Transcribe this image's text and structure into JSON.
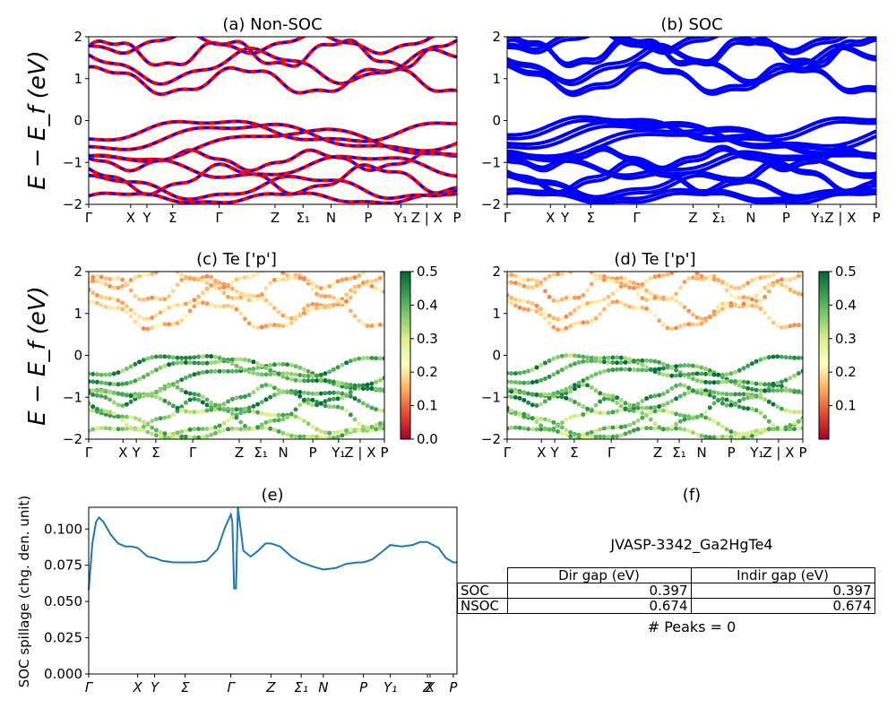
{
  "panels": {
    "a_title": "(a) Non-SOC",
    "b_title": "(b) SOC",
    "c_title": "(c)  Te ['p']",
    "d_title": "(d) Te ['p']",
    "e_title": "(e)",
    "f_title": "(f)"
  },
  "ylabels": {
    "band_y": "E − E_f (eV)",
    "spillage_y": "SOC spillage (chg. den. unit)"
  },
  "colorbar_ticks": [
    "0.0",
    "0.1",
    "0.2",
    "0.3",
    "0.4",
    "0.5"
  ],
  "colorbar_ticks_d": [
    "0.1",
    "0.2",
    "0.3",
    "0.4",
    "0.5"
  ],
  "chart_data": [
    {
      "id": "a",
      "type": "line",
      "title": "(a) Non-SOC",
      "ylabel": "E − E_f (eV)",
      "ylim": [
        -2,
        2
      ],
      "yticks": [
        "2",
        "1",
        "0",
        "−1",
        "−2"
      ],
      "kpath_labels": [
        "Γ",
        "X",
        "Y",
        "Σ",
        "Γ",
        "Z",
        "Σ₁",
        "N",
        "P",
        "Y₁",
        "Z | X",
        "P"
      ],
      "kpath_positions": [
        0,
        0.114,
        0.158,
        0.228,
        0.354,
        0.506,
        0.582,
        0.658,
        0.759,
        0.848,
        0.918,
        1.0
      ],
      "series_colors": [
        "#ff0000",
        "#0000ff"
      ],
      "bands_note_values": [
        -1.9,
        -1.5,
        -1.0,
        -0.3,
        0.0,
        0.7,
        1.45,
        1.9
      ]
    },
    {
      "id": "b",
      "type": "line",
      "title": "(b) SOC",
      "ylabel": "",
      "ylim": [
        -2,
        2
      ],
      "yticks": [
        "2",
        "1",
        "0",
        "−1",
        "−2"
      ],
      "kpath_labels": [
        "Γ",
        "X",
        "Y",
        "Σ",
        "Γ",
        "Z",
        "Σ₁",
        "N",
        "P",
        "Y₁",
        "Z | X",
        "P"
      ],
      "kpath_positions": [
        0,
        0.146,
        0.195,
        0.282,
        0.437,
        0.627,
        0.713,
        0.822,
        0.941,
        1.048,
        1.124,
        1.245
      ],
      "series_colors": [
        "#0000ff"
      ]
    },
    {
      "id": "c",
      "type": "scatter",
      "title": "(c)  Te ['p']",
      "ylabel": "E − E_f (eV)",
      "ylim": [
        -2,
        2
      ],
      "yticks": [
        "2",
        "1",
        "0",
        "−1",
        "−2"
      ],
      "colorbar_range": [
        0.0,
        0.5
      ],
      "kpath_labels": [
        "Γ",
        "X",
        "Y",
        "Σ",
        "Γ",
        "Z",
        "Σ₁",
        "N",
        "P",
        "Y₁",
        "Z | X",
        "P"
      ],
      "kpath_positions": [
        0,
        0.116,
        0.161,
        0.227,
        0.352,
        0.509,
        0.582,
        0.658,
        0.758,
        0.845,
        0.918,
        1.0
      ]
    },
    {
      "id": "d",
      "type": "scatter",
      "title": "(d) Te ['p']",
      "ylabel": "",
      "ylim": [
        -2,
        2
      ],
      "yticks": [
        "2",
        "1",
        "0",
        "−1",
        "−2"
      ],
      "colorbar_range": [
        0.0,
        0.5
      ],
      "kpath_labels": [
        "Γ",
        "X",
        "Y",
        "Σ",
        "Γ",
        "Z",
        "Σ₁",
        "N",
        "P",
        "Y₁",
        "Z | X",
        "P"
      ],
      "kpath_positions": [
        0,
        0.116,
        0.161,
        0.227,
        0.352,
        0.509,
        0.582,
        0.658,
        0.758,
        0.845,
        0.918,
        1.0
      ]
    },
    {
      "id": "e",
      "type": "line",
      "title": "(e)",
      "ylabel": "SOC spillage (chg. den. unit)",
      "ylim": [
        0,
        0.115
      ],
      "yticks": [
        "0.000",
        "0.025",
        "0.050",
        "0.075",
        "0.100"
      ],
      "ytick_values": [
        0,
        0.025,
        0.05,
        0.075,
        0.1
      ],
      "kpath_labels": [
        "Γ",
        "X",
        "Y",
        "Σ",
        "Γ",
        "Z",
        "Σ₁",
        "N",
        "P",
        "Y₁",
        "Z",
        "X",
        "P"
      ],
      "kpath_positions": [
        0,
        0.133,
        0.179,
        0.262,
        0.386,
        0.495,
        0.577,
        0.637,
        0.746,
        0.819,
        0.92,
        0.927,
        0.99
      ],
      "color": "#1f77b4",
      "x": [
        0,
        0.01,
        0.02,
        0.028,
        0.04,
        0.06,
        0.08,
        0.1,
        0.115,
        0.133,
        0.16,
        0.179,
        0.2,
        0.23,
        0.262,
        0.29,
        0.32,
        0.35,
        0.37,
        0.386,
        0.39,
        0.395,
        0.4,
        0.402,
        0.405,
        0.42,
        0.44,
        0.46,
        0.48,
        0.495,
        0.52,
        0.55,
        0.577,
        0.61,
        0.637,
        0.67,
        0.7,
        0.73,
        0.746,
        0.77,
        0.8,
        0.819,
        0.85,
        0.88,
        0.9,
        0.92,
        0.927,
        0.95,
        0.97,
        0.99,
        1.0
      ],
      "values": [
        0.058,
        0.09,
        0.105,
        0.108,
        0.105,
        0.096,
        0.09,
        0.088,
        0.088,
        0.087,
        0.081,
        0.08,
        0.078,
        0.077,
        0.077,
        0.077,
        0.078,
        0.086,
        0.101,
        0.11,
        0.105,
        0.059,
        0.059,
        0.082,
        0.115,
        0.085,
        0.081,
        0.085,
        0.09,
        0.09,
        0.088,
        0.081,
        0.077,
        0.074,
        0.072,
        0.073,
        0.076,
        0.077,
        0.077,
        0.079,
        0.085,
        0.089,
        0.088,
        0.089,
        0.091,
        0.091,
        0.09,
        0.087,
        0.08,
        0.077,
        0.077
      ]
    }
  ],
  "info": {
    "jid": "JVASP-3342_Ga2HgTe4",
    "header_dir": "Dir gap (eV)",
    "header_indir": "Indir gap (eV)",
    "row1_label": "SOC",
    "row1_dir": "0.397",
    "row1_indir": "0.397",
    "row2_label": "NSOC",
    "row2_dir": "0.674",
    "row2_indir": "0.674",
    "peaks": "# Peaks = 0"
  }
}
